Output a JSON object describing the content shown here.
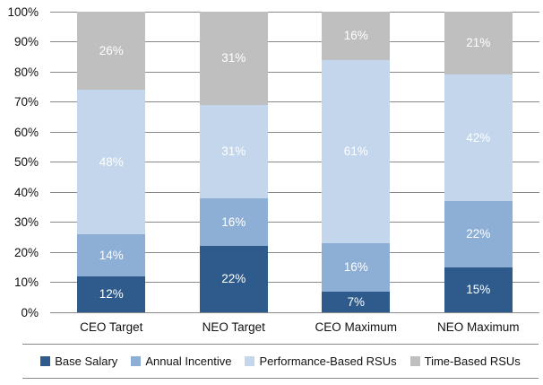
{
  "chart_data": {
    "type": "bar",
    "subtype": "stacked-100-percent",
    "title": "",
    "xlabel": "",
    "ylabel": "",
    "categories": [
      "CEO Target",
      "NEO Target",
      "CEO Maximum",
      "NEO Maximum"
    ],
    "series": [
      {
        "name": "Base Salary",
        "color": "#2E5B8C",
        "values": [
          12,
          22,
          7,
          15
        ]
      },
      {
        "name": "Annual Incentive",
        "color": "#8EAFD5",
        "values": [
          14,
          16,
          16,
          22
        ]
      },
      {
        "name": "Performance-Based RSUs",
        "color": "#C4D6EB",
        "values": [
          48,
          31,
          61,
          42
        ]
      },
      {
        "name": "Time-Based RSUs",
        "color": "#BFBFBF",
        "values": [
          26,
          31,
          16,
          21
        ]
      }
    ],
    "data_label_suffix": "%",
    "y_axis": {
      "min": 0,
      "max": 100,
      "step": 10,
      "tick_labels": [
        "0%",
        "10%",
        "20%",
        "30%",
        "40%",
        "50%",
        "60%",
        "70%",
        "80%",
        "90%",
        "100%"
      ]
    },
    "grid": true,
    "legend_position": "bottom"
  },
  "colors": {
    "gridline": "#8a8a8a",
    "background": "#FFFFFF",
    "axis_text": "#111111",
    "data_label_text": "#FFFFFF"
  }
}
